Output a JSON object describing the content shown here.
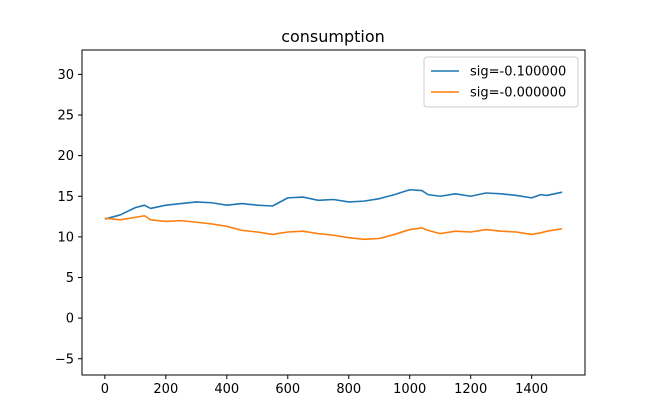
{
  "chart_data": {
    "type": "line",
    "title": "consumption",
    "xlabel": "",
    "ylabel": "",
    "xlim": [
      -75,
      1575
    ],
    "ylim": [
      -7,
      33
    ],
    "xticks": [
      0,
      200,
      400,
      600,
      800,
      1000,
      1200,
      1400
    ],
    "yticks": [
      -5,
      0,
      5,
      10,
      15,
      20,
      25,
      30
    ],
    "grid": false,
    "legend_position": "top-right",
    "series": [
      {
        "name": "sig=-0.100000",
        "color": "#1f77b4",
        "x": [
          0,
          50,
          100,
          130,
          150,
          200,
          250,
          300,
          350,
          400,
          450,
          500,
          550,
          600,
          650,
          700,
          750,
          800,
          850,
          900,
          950,
          1000,
          1040,
          1060,
          1100,
          1150,
          1200,
          1250,
          1300,
          1350,
          1400,
          1430,
          1450,
          1500
        ],
        "y": [
          12.2,
          12.7,
          13.6,
          13.9,
          13.5,
          13.9,
          14.1,
          14.3,
          14.2,
          13.9,
          14.1,
          13.9,
          13.8,
          14.8,
          14.9,
          14.5,
          14.6,
          14.3,
          14.4,
          14.7,
          15.2,
          15.8,
          15.7,
          15.2,
          15.0,
          15.3,
          15.0,
          15.4,
          15.3,
          15.1,
          14.8,
          15.2,
          15.1,
          15.5
        ]
      },
      {
        "name": "sig=-0.000000",
        "color": "#ff7f0e",
        "x": [
          0,
          50,
          100,
          130,
          150,
          200,
          250,
          300,
          350,
          400,
          450,
          500,
          550,
          600,
          650,
          700,
          750,
          800,
          850,
          900,
          950,
          1000,
          1040,
          1060,
          1100,
          1150,
          1200,
          1250,
          1300,
          1350,
          1400,
          1430,
          1450,
          1500
        ],
        "y": [
          12.3,
          12.1,
          12.4,
          12.6,
          12.1,
          11.9,
          12.0,
          11.8,
          11.6,
          11.3,
          10.8,
          10.6,
          10.3,
          10.6,
          10.7,
          10.4,
          10.2,
          9.9,
          9.7,
          9.8,
          10.3,
          10.9,
          11.1,
          10.8,
          10.4,
          10.7,
          10.6,
          10.9,
          10.7,
          10.6,
          10.3,
          10.5,
          10.7,
          11.0
        ]
      }
    ]
  }
}
